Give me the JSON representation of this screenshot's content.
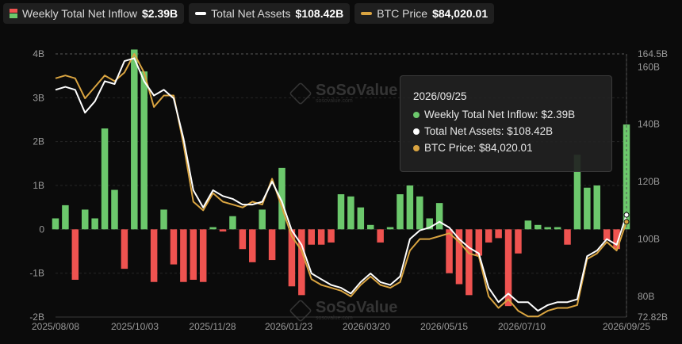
{
  "legend": {
    "inflow": {
      "label": "Weekly Total Net Inflow",
      "value": "$2.39B"
    },
    "assets": {
      "label": "Total Net Assets",
      "value": "$108.42B"
    },
    "btc": {
      "label": "BTC Price",
      "value": "$84,020.01"
    }
  },
  "tooltip": {
    "date": "2026/09/25",
    "inflow": "Weekly Total Net Inflow: $2.39B",
    "assets": "Total Net Assets: $108.42B",
    "btc": "BTC Price: $84,020.01"
  },
  "watermark": {
    "name": "SoSoValue",
    "url": "sosovalue.com"
  },
  "colors": {
    "positive": "#6cc86c",
    "negative": "#ef5350",
    "assets": "#ffffff",
    "btc": "#d9a441",
    "background": "#0b0b0b"
  },
  "chart_data": {
    "type": "bar",
    "x_ticks": [
      "2025/08/08",
      "2025/10/03",
      "2025/11/28",
      "2026/01/23",
      "2026/03/20",
      "2026/05/15",
      "2026/07/10",
      "2026/09/25"
    ],
    "y_left_ticks": [
      "4B",
      "3B",
      "2B",
      "1B",
      "0",
      "-1B",
      "-2B"
    ],
    "y_left_range": [
      -2,
      4
    ],
    "y_right_ticks": [
      "164.5B",
      "160B",
      "140B",
      "120B",
      "100B",
      "80B",
      "72.82B"
    ],
    "y_right_range": [
      72.82,
      164.5
    ],
    "grid": true,
    "series": [
      {
        "name": "Weekly Total Net Inflow",
        "type": "bar",
        "unit": "B",
        "values": [
          0.25,
          0.55,
          -1.15,
          0.45,
          0.25,
          2.3,
          0.9,
          -0.9,
          4.1,
          3.6,
          -1.2,
          0.45,
          -0.8,
          -1.2,
          -1.15,
          -1.2,
          0.05,
          -0.05,
          0.3,
          -0.45,
          -0.75,
          0.45,
          -0.7,
          1.4,
          -1.3,
          -1.5,
          -0.35,
          -0.35,
          -0.3,
          0.8,
          0.75,
          0.5,
          0.1,
          -0.3,
          0.05,
          0.8,
          1.0,
          0.75,
          0.25,
          0.6,
          -1.0,
          -1.25,
          -1.5,
          -0.6,
          -0.3,
          -0.2,
          -1.75,
          -0.55,
          0.2,
          0.1,
          0.05,
          0.05,
          -0.35,
          1.7,
          0.95,
          1.0,
          -0.25,
          -0.45,
          2.39
        ]
      },
      {
        "name": "Total Net Assets",
        "type": "line",
        "unit": "B",
        "values": [
          152,
          153,
          152,
          144,
          148,
          155,
          154,
          162,
          163,
          155,
          150,
          152,
          149,
          135,
          117,
          111,
          117,
          115,
          114,
          112,
          112,
          113,
          120,
          113,
          103,
          98,
          88,
          86,
          84,
          83,
          81,
          85,
          88,
          85,
          84,
          87,
          100,
          103,
          104,
          106,
          104,
          100,
          97,
          95,
          83,
          78,
          81,
          78,
          78,
          75,
          77,
          78,
          78,
          79,
          94,
          96,
          100,
          98,
          108.42
        ]
      },
      {
        "name": "BTC Price",
        "type": "line",
        "unit": "B (right-axis scale)",
        "values": [
          156,
          157,
          156,
          149,
          153,
          157,
          155,
          158,
          164.5,
          158,
          146,
          150,
          150,
          133,
          113,
          110,
          116,
          113,
          112,
          111,
          113,
          112,
          121,
          111,
          101,
          96,
          86,
          84,
          83,
          82,
          80,
          84,
          87,
          84,
          83,
          85,
          96,
          100,
          100,
          101,
          102,
          99,
          95,
          94,
          80,
          76,
          79,
          75,
          73,
          73,
          75,
          76,
          76,
          77,
          93,
          95,
          99,
          96,
          106
        ]
      }
    ]
  }
}
